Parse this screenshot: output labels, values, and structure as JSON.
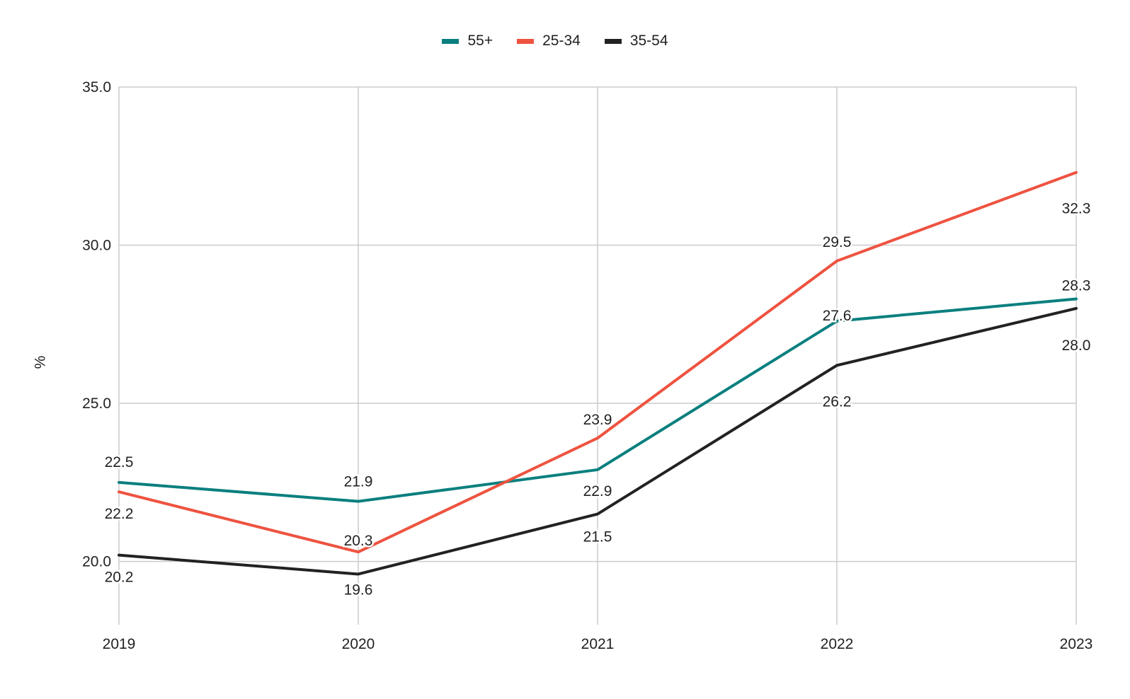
{
  "chart_data": {
    "type": "line",
    "title": "",
    "xlabel": "",
    "ylabel": "%",
    "categories": [
      "2019",
      "2020",
      "2021",
      "2022",
      "2023"
    ],
    "ylim": [
      18.0,
      35.0
    ],
    "yticks": [
      "20.0",
      "25.0",
      "30.0",
      "35.0"
    ],
    "grid": true,
    "legend_position": "top-center",
    "series": [
      {
        "name": "55+",
        "color": "#0a7f7f",
        "values": [
          22.5,
          21.9,
          22.9,
          27.6,
          28.3
        ],
        "labels": [
          "22.5",
          "21.9",
          "22.9",
          "27.6",
          "28.3"
        ]
      },
      {
        "name": "25-34",
        "color": "#ee5340",
        "values": [
          22.2,
          20.3,
          23.9,
          29.5,
          32.3
        ],
        "labels": [
          "22.2",
          "20.3",
          "23.9",
          "29.5",
          "32.3"
        ]
      },
      {
        "name": "35-54",
        "color": "#222222",
        "values": [
          20.2,
          19.6,
          21.5,
          26.2,
          28.0
        ],
        "labels": [
          "20.2",
          "19.6",
          "21.5",
          "26.2",
          "28.0"
        ]
      }
    ]
  }
}
